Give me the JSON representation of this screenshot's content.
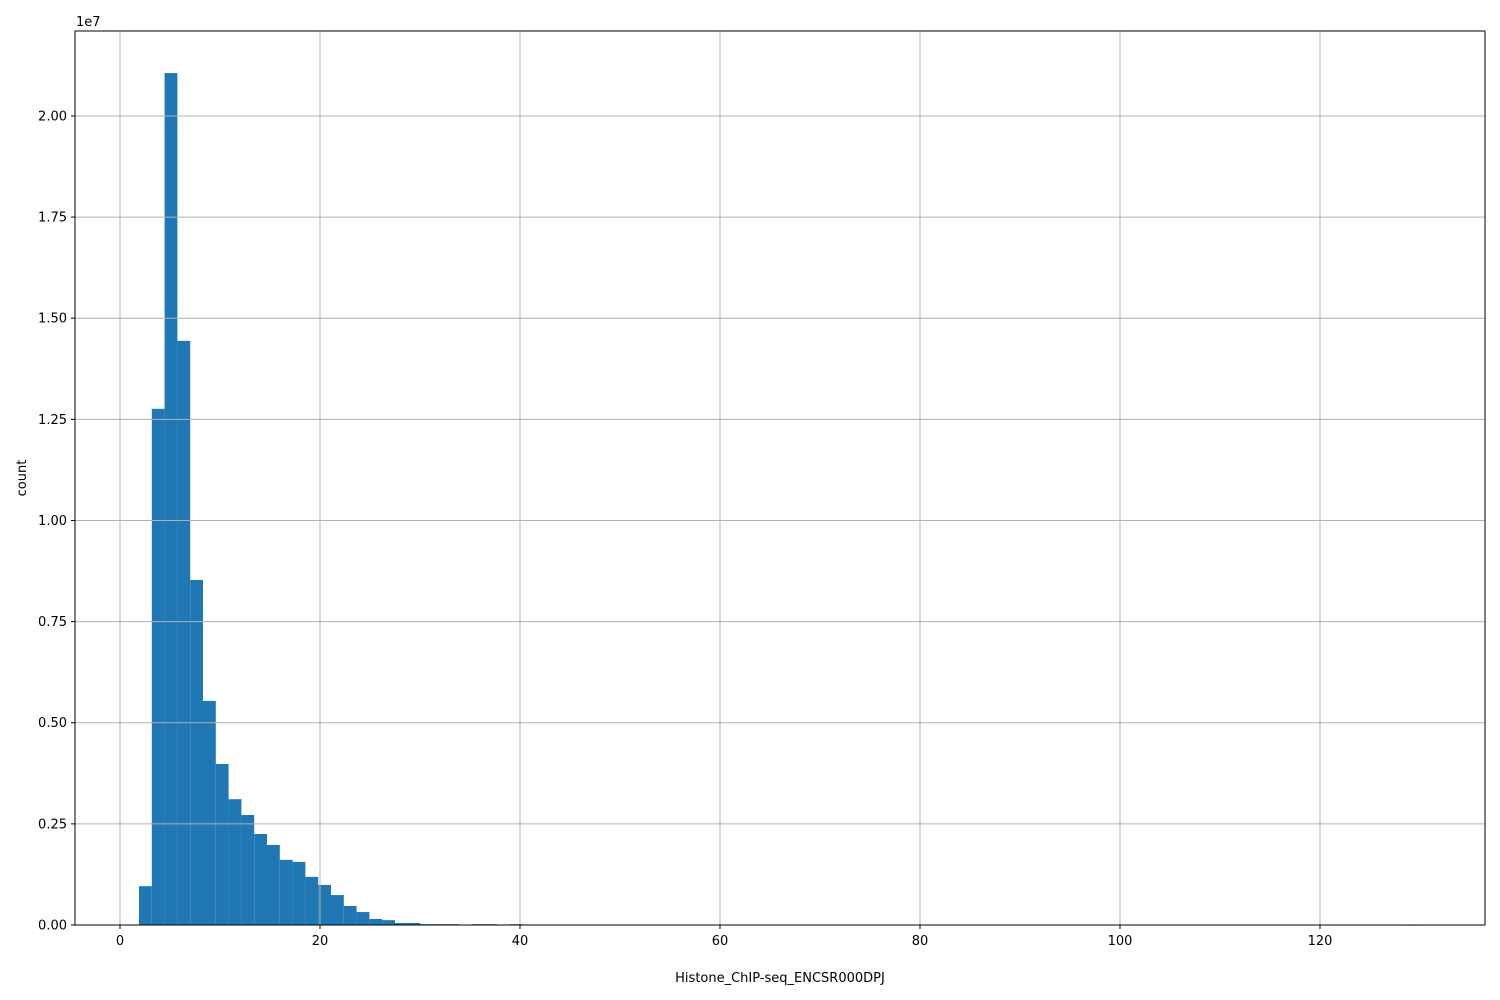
{
  "chart_data": {
    "type": "bar",
    "subtype": "histogram",
    "title": "",
    "xlabel": "Histone_ChIP-seq_ENCSR000DPJ",
    "ylabel": "count",
    "y_offset_label": "1e7",
    "bin_start": 1.9,
    "bin_width": 1.28,
    "counts_millions": [
      0.96,
      12.76,
      21.06,
      14.44,
      8.53,
      5.54,
      3.98,
      3.11,
      2.72,
      2.25,
      1.98,
      1.61,
      1.56,
      1.19,
      0.99,
      0.74,
      0.47,
      0.32,
      0.15,
      0.12,
      0.05,
      0.05,
      0.02,
      0.02,
      0.02,
      0,
      0.02,
      0.02,
      0,
      0.02,
      0,
      0,
      0,
      0,
      0,
      0,
      0,
      0,
      0,
      0,
      0,
      0,
      0,
      0,
      0,
      0,
      0,
      0,
      0,
      0,
      0,
      0,
      0,
      0,
      0,
      0,
      0,
      0,
      0,
      0,
      0,
      0,
      0,
      0,
      0,
      0,
      0,
      0,
      0,
      0,
      0,
      0,
      0,
      0,
      0,
      0,
      0,
      0,
      0,
      0,
      0,
      0,
      0,
      0,
      0,
      0,
      0,
      0,
      0,
      0,
      0,
      0,
      0,
      0,
      0,
      0,
      0,
      0,
      0,
      0.01
    ],
    "xlim": [
      -4.5,
      136.5
    ],
    "ylim": [
      0,
      22100000
    ],
    "xticks": [
      0,
      20,
      40,
      60,
      80,
      100,
      120
    ],
    "xtick_labels": [
      "0",
      "20",
      "40",
      "60",
      "80",
      "100",
      "120"
    ],
    "yticks": [
      0,
      2500000,
      5000000,
      7500000,
      10000000,
      12500000,
      15000000,
      17500000,
      20000000
    ],
    "ytick_labels": [
      "0.00",
      "0.25",
      "0.50",
      "0.75",
      "1.00",
      "1.25",
      "1.50",
      "1.75",
      "2.00"
    ],
    "grid": true,
    "bar_color": "#1f77b4",
    "grid_color": "#b0b0b0"
  }
}
